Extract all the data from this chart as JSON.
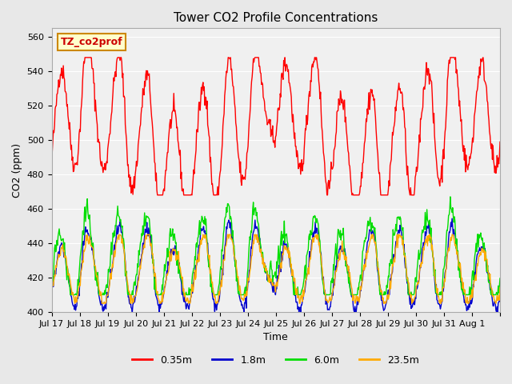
{
  "title": "Tower CO2 Profile Concentrations",
  "xlabel": "Time",
  "ylabel": "CO2 (ppm)",
  "ylim": [
    400,
    565
  ],
  "yticks": [
    400,
    420,
    440,
    460,
    480,
    500,
    520,
    540,
    560
  ],
  "series_colors": {
    "0.35m": "#ff0000",
    "1.8m": "#0000cc",
    "6.0m": "#00dd00",
    "23.5m": "#ffaa00"
  },
  "legend_label": "TZ_co2prof",
  "legend_bg": "#ffffcc",
  "legend_border": "#cc8800",
  "bg_color": "#e8e8e8",
  "plot_bg": "#f0f0f0",
  "n_days": 16,
  "xtick_positions": [
    0,
    1,
    2,
    3,
    4,
    5,
    6,
    7,
    8,
    9,
    10,
    11,
    12,
    13,
    14,
    15,
    16
  ],
  "xtick_labels": [
    "Jul 17",
    "Jul 18",
    "Jul 19",
    "Jul 20",
    "Jul 21",
    "Jul 22",
    "Jul 23",
    "Jul 24",
    "Jul 25",
    "Jul 26",
    "Jul 27",
    "Jul 28",
    "Jul 29",
    "Jul 30",
    "Jul 31",
    "Aug 1",
    ""
  ]
}
